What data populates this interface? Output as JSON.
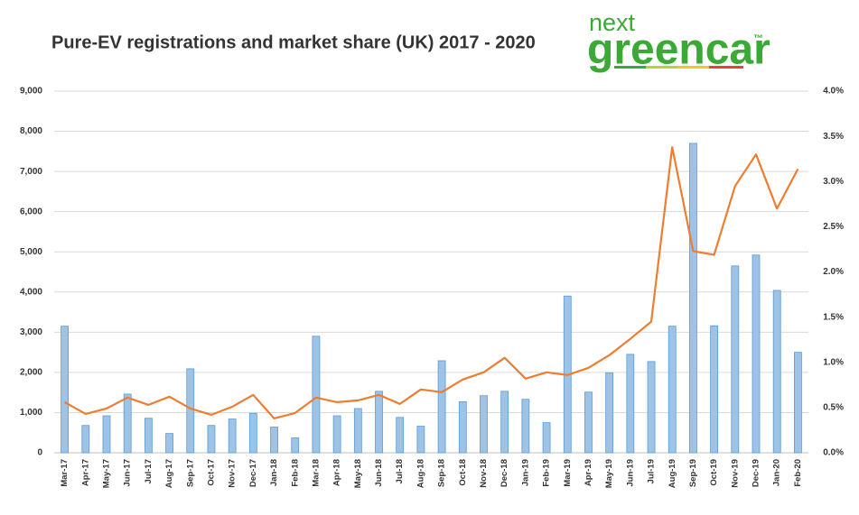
{
  "logo": {
    "top": "next",
    "main": "greencar",
    "mark": "™"
  },
  "chart_data": {
    "type": "bar-line",
    "title": "Pure-EV registrations and market share (UK) 2017 - 2020",
    "categories": [
      "Mar-17",
      "Apr-17",
      "May-17",
      "Jun-17",
      "Jul-17",
      "Aug-17",
      "Sep-17",
      "Oct-17",
      "Nov-17",
      "Dec-17",
      "Jan-18",
      "Feb-18",
      "Mar-18",
      "Apr-18",
      "May-18",
      "Jun-18",
      "Jul-18",
      "Aug-18",
      "Sep-18",
      "Oct-18",
      "Nov-18",
      "Dec-18",
      "Jan-19",
      "Feb-19",
      "Mar-19",
      "Apr-19",
      "May-19",
      "Jun-19",
      "Jul-19",
      "Aug-19",
      "Sep-19",
      "Oct-19",
      "Nov-19",
      "Dec-19",
      "Jan-20",
      "Feb-20"
    ],
    "series": [
      {
        "type": "bar",
        "color": "#9dc3e6",
        "values": [
          3150,
          680,
          920,
          1460,
          860,
          480,
          2090,
          680,
          840,
          980,
          640,
          370,
          2900,
          920,
          1100,
          1530,
          880,
          660,
          2290,
          1270,
          1420,
          1530,
          1330,
          750,
          3900,
          1510,
          1990,
          2450,
          2270,
          3150,
          7700,
          3160,
          4650,
          4920,
          4040,
          2500
        ]
      },
      {
        "type": "line",
        "axis": "y2",
        "color": "#ed7d31",
        "values": [
          0.56,
          0.43,
          0.49,
          0.61,
          0.53,
          0.62,
          0.49,
          0.42,
          0.51,
          0.64,
          0.38,
          0.44,
          0.61,
          0.56,
          0.58,
          0.64,
          0.54,
          0.7,
          0.67,
          0.81,
          0.89,
          1.05,
          0.82,
          0.89,
          0.86,
          0.94,
          1.08,
          1.26,
          1.45,
          3.38,
          2.23,
          2.19,
          2.95,
          3.3,
          2.7,
          3.14
        ]
      }
    ],
    "ylim": [
      0,
      9000
    ],
    "yticks": [
      0,
      {
        "value": 1000,
        "label": "1,000"
      },
      {
        "value": 2000,
        "label": "2,000"
      },
      {
        "value": 3000,
        "label": "3,000"
      },
      {
        "value": 4000,
        "label": "4,000"
      },
      {
        "value": 5000,
        "label": "5,000"
      },
      {
        "value": 6000,
        "label": "6,000"
      },
      {
        "value": 7000,
        "label": "7,000"
      },
      {
        "value": 8000,
        "label": "8,000"
      },
      {
        "value": 9000,
        "label": "9,000"
      }
    ],
    "y2lim": [
      0,
      4
    ],
    "y2ticks": [
      {
        "value": 0,
        "label": "0.0%"
      },
      {
        "value": 0.5,
        "label": "0.5%"
      },
      {
        "value": 1,
        "label": "1.0%"
      },
      {
        "value": 1.5,
        "label": "1.5%"
      },
      {
        "value": 2,
        "label": "2.0%"
      },
      {
        "value": 2.5,
        "label": "2.5%"
      },
      {
        "value": 3,
        "label": "3.0%"
      },
      {
        "value": 3.5,
        "label": "3.5%"
      },
      {
        "value": 4,
        "label": "4.0%"
      }
    ],
    "grid": true
  }
}
